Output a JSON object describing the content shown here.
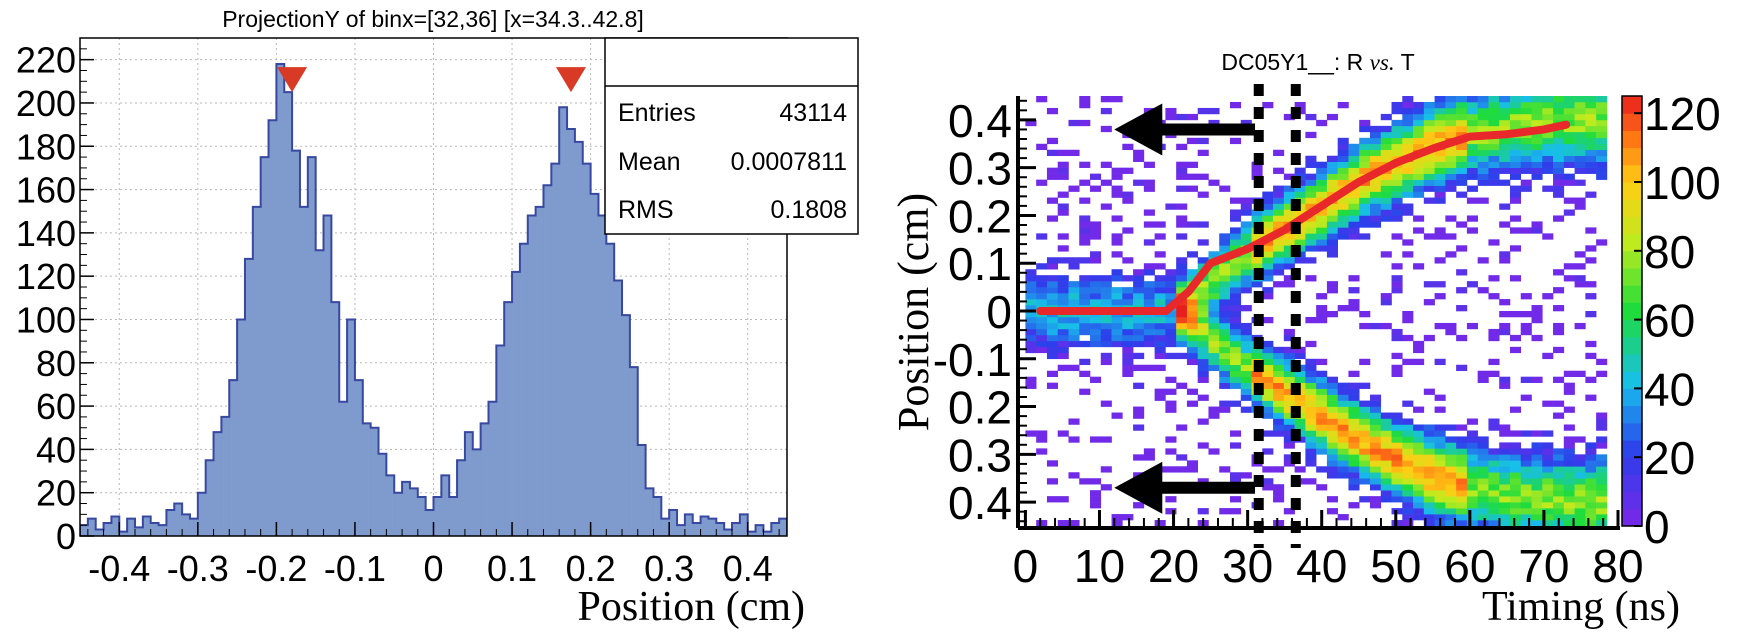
{
  "chart_data": [
    {
      "type": "bar",
      "subtype": "histogram",
      "title": "ProjectionY of binx=[32,36] [x=34.3..42.8]",
      "xlabel": "Position (cm)",
      "ylabel": "",
      "xlim": [
        -0.45,
        0.45
      ],
      "ylim": [
        0,
        230
      ],
      "xticks": [
        "-0.4",
        "-0.3",
        "-0.2",
        "-0.1",
        "0",
        "0.1",
        "0.2",
        "0.3",
        "0.4"
      ],
      "yticks": [
        "0",
        "20",
        "40",
        "60",
        "80",
        "100",
        "120",
        "140",
        "160",
        "180",
        "200",
        "220"
      ],
      "grid": true,
      "bin_width": 0.01,
      "x": [
        -0.445,
        -0.435,
        -0.425,
        -0.415,
        -0.405,
        -0.395,
        -0.385,
        -0.375,
        -0.365,
        -0.355,
        -0.345,
        -0.335,
        -0.325,
        -0.315,
        -0.305,
        -0.295,
        -0.285,
        -0.275,
        -0.265,
        -0.255,
        -0.245,
        -0.235,
        -0.225,
        -0.215,
        -0.205,
        -0.195,
        -0.185,
        -0.175,
        -0.165,
        -0.155,
        -0.145,
        -0.135,
        -0.125,
        -0.115,
        -0.105,
        -0.095,
        -0.085,
        -0.075,
        -0.065,
        -0.055,
        -0.045,
        -0.035,
        -0.025,
        -0.015,
        -0.005,
        0.005,
        0.015,
        0.025,
        0.035,
        0.045,
        0.055,
        0.065,
        0.075,
        0.085,
        0.095,
        0.105,
        0.115,
        0.125,
        0.135,
        0.145,
        0.155,
        0.165,
        0.175,
        0.185,
        0.195,
        0.205,
        0.215,
        0.225,
        0.235,
        0.245,
        0.255,
        0.265,
        0.275,
        0.285,
        0.295,
        0.305,
        0.315,
        0.325,
        0.335,
        0.345,
        0.355,
        0.365,
        0.375,
        0.385,
        0.395,
        0.405,
        0.415,
        0.425,
        0.435,
        0.445
      ],
      "values": [
        5,
        8,
        3,
        6,
        9,
        2,
        8,
        4,
        9,
        6,
        5,
        12,
        15,
        10,
        8,
        20,
        35,
        48,
        55,
        72,
        100,
        128,
        152,
        175,
        192,
        218,
        205,
        178,
        152,
        175,
        132,
        148,
        108,
        62,
        100,
        72,
        52,
        50,
        38,
        28,
        20,
        25,
        22,
        18,
        12,
        18,
        28,
        18,
        35,
        48,
        40,
        52,
        62,
        88,
        108,
        122,
        135,
        148,
        152,
        162,
        172,
        198,
        188,
        182,
        172,
        158,
        148,
        135,
        118,
        102,
        78,
        42,
        22,
        18,
        8,
        12,
        5,
        10,
        6,
        9,
        8,
        6,
        3,
        6,
        10,
        2,
        5,
        2,
        6,
        8
      ],
      "markers": [
        {
          "x": -0.18,
          "y": 205
        },
        {
          "x": 0.175,
          "y": 205
        }
      ],
      "stats": {
        "rows": [
          {
            "label": "Entries",
            "value": "43114"
          },
          {
            "label": "Mean",
            "value": "0.0007811"
          },
          {
            "label": "RMS",
            "value": "0.1808"
          }
        ]
      }
    },
    {
      "type": "heatmap",
      "title_main": "DC05Y1__: R ",
      "title_vs": "vs.",
      "title_end": " T",
      "xlabel": "Timing (ns)",
      "ylabel": "Position (cm)",
      "xlim": [
        -1,
        80
      ],
      "ylim": [
        -0.45,
        0.45
      ],
      "xticks": [
        "0",
        "10",
        "20",
        "30",
        "40",
        "50",
        "60",
        "70",
        "80"
      ],
      "yticks": [
        {
          "v": 0.4,
          "label": "0.4"
        },
        {
          "v": 0.3,
          "label": "0.3"
        },
        {
          "v": 0.2,
          "label": "0.2"
        },
        {
          "v": 0.1,
          "label": "0.1"
        },
        {
          "v": 0,
          "label": "0"
        },
        {
          "v": -0.1,
          "label": "-0.1"
        },
        {
          "v": -0.2,
          "label": "0.2"
        },
        {
          "v": -0.3,
          "label": "0.3"
        },
        {
          "v": -0.4,
          "label": "0.4"
        }
      ],
      "colorbar": {
        "min": 0,
        "max": 125,
        "ticks": [
          "0",
          "20",
          "40",
          "60",
          "80",
          "100",
          "120"
        ]
      },
      "band_upper": {
        "t": [
          0,
          5,
          10,
          15,
          20,
          25,
          30,
          35,
          40,
          45,
          50,
          55,
          60,
          65,
          70,
          75
        ],
        "r": [
          0.0,
          0.0,
          0.0,
          0.0,
          0.0,
          0.06,
          0.12,
          0.17,
          0.22,
          0.27,
          0.31,
          0.345,
          0.37,
          0.385,
          0.395,
          0.4
        ]
      },
      "band_lower": {
        "t": [
          0,
          5,
          10,
          15,
          20,
          25,
          30,
          35,
          40,
          45,
          50,
          55,
          60,
          65,
          70,
          75
        ],
        "r": [
          0.0,
          0.0,
          0.0,
          0.0,
          0.0,
          -0.06,
          -0.12,
          -0.17,
          -0.22,
          -0.27,
          -0.31,
          -0.345,
          -0.37,
          -0.385,
          -0.395,
          -0.4
        ]
      },
      "fit_curve": {
        "t": [
          2,
          5,
          10,
          15,
          19,
          22,
          25,
          30,
          35,
          40,
          45,
          50,
          55,
          60,
          65,
          70,
          73
        ],
        "r": [
          0.0,
          0.0,
          0.0,
          0.0,
          0.0,
          0.04,
          0.1,
          0.13,
          0.17,
          0.22,
          0.27,
          0.31,
          0.34,
          0.365,
          0.37,
          0.38,
          0.39
        ]
      },
      "slice_band": {
        "t_from": 31.5,
        "t_to": 36.5
      },
      "arrows": [
        {
          "t_tip": 12,
          "t_tail": 31,
          "r": 0.38
        },
        {
          "t_tip": 12,
          "t_tail": 31,
          "r": -0.37
        }
      ]
    }
  ],
  "colors": {
    "hist_fill": "#7f9acd",
    "hist_line": "#3848a0",
    "marker": "#d83a26",
    "fit_curve": "#e8282a",
    "background_bins": "#7a29e8"
  }
}
